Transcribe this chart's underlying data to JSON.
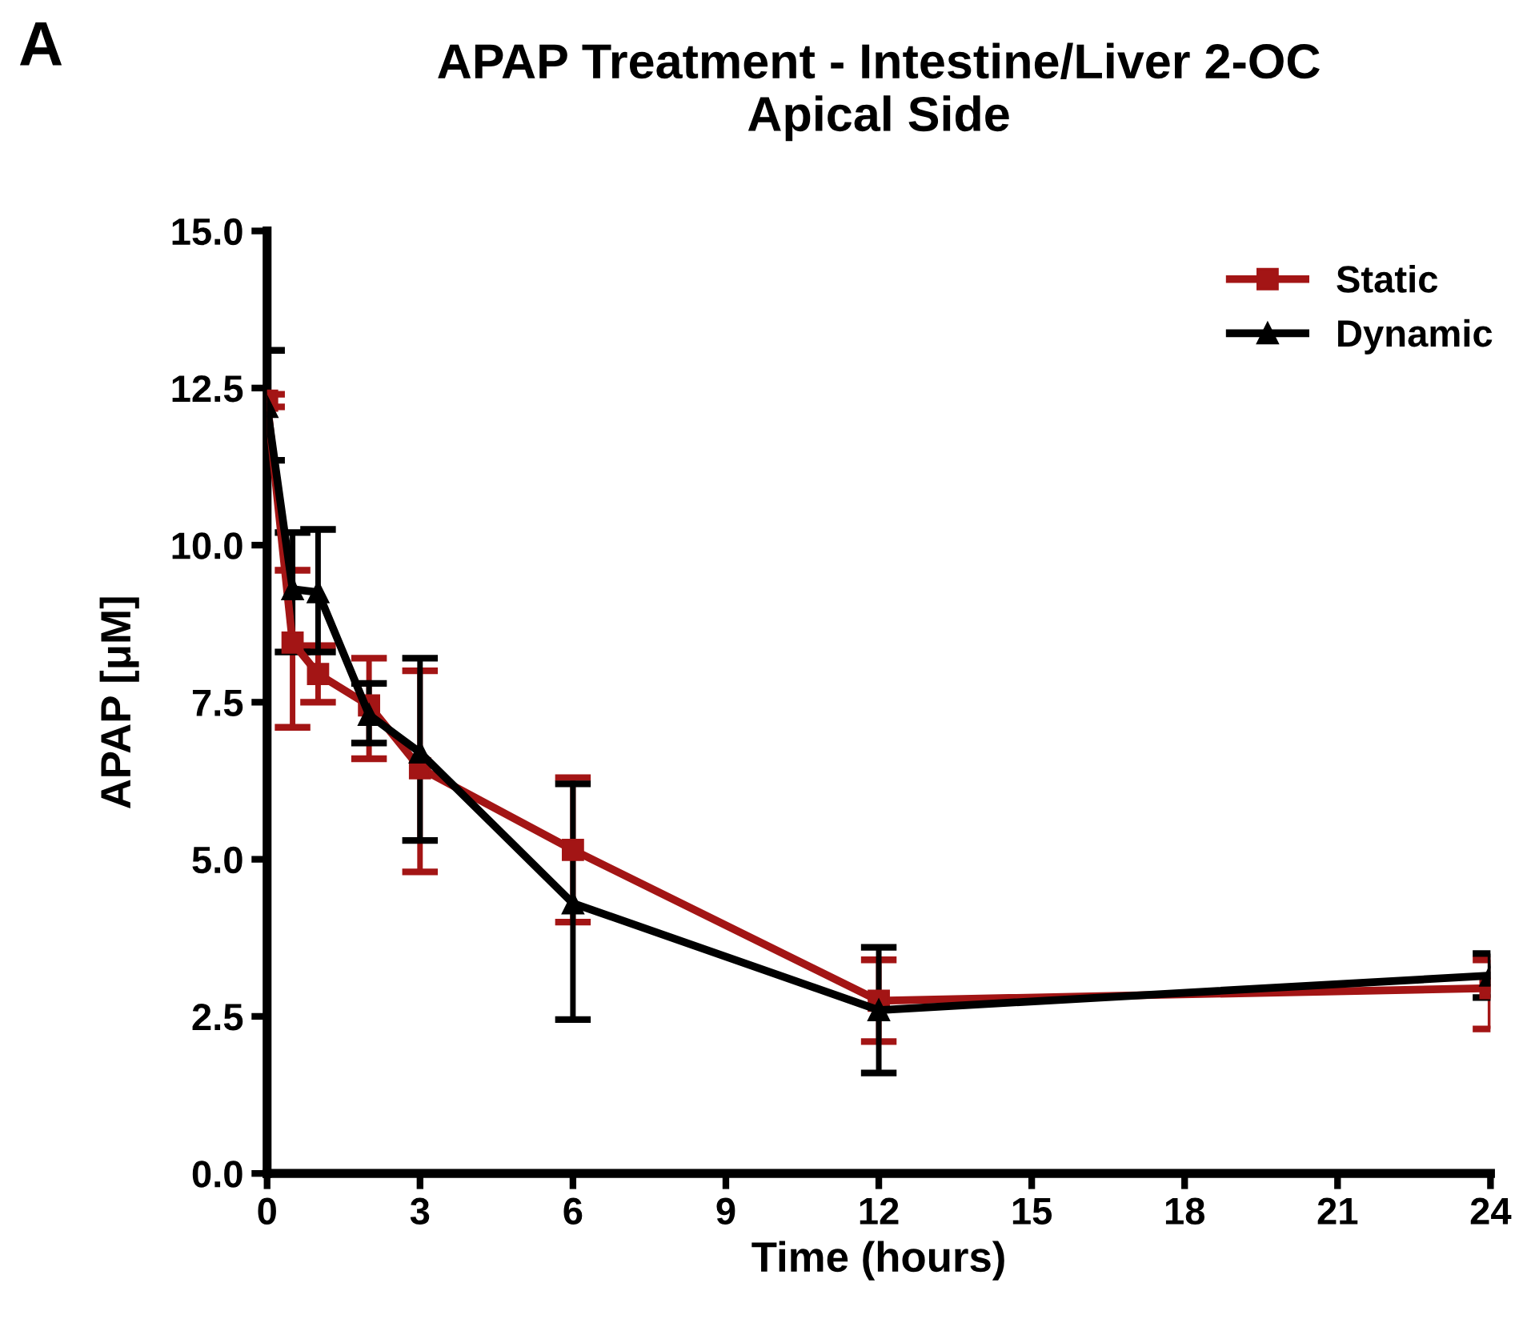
{
  "chart_data": {
    "type": "line",
    "title": "APAP Treatment - Intestine/Liver 2-OC\nApical Side",
    "xlabel": "Time (hours)",
    "ylabel": "APAP [μM]",
    "annotations": [
      "A"
    ],
    "x": [
      0,
      0.5,
      1,
      2,
      3,
      6,
      12,
      24
    ],
    "series": [
      {
        "name": "Static",
        "color": "#a31515",
        "marker": "square",
        "values": [
          12.3,
          8.45,
          7.95,
          7.45,
          6.45,
          5.15,
          2.75,
          2.95
        ],
        "errors": [
          0.1,
          [
            7.1,
            9.6
          ],
          [
            7.5,
            8.4
          ],
          [
            6.6,
            8.2
          ],
          [
            4.8,
            8.0
          ],
          [
            4.0,
            6.3
          ],
          [
            2.1,
            3.4
          ],
          [
            2.3,
            3.4
          ]
        ]
      },
      {
        "name": "Dynamic",
        "color": "#000000",
        "marker": "triangle",
        "values": [
          12.2,
          9.3,
          9.25,
          7.3,
          6.7,
          4.3,
          2.6,
          3.15
        ],
        "errors": [
          [
            11.35,
            13.1
          ],
          [
            8.3,
            10.2
          ],
          [
            8.3,
            10.25
          ],
          [
            6.85,
            7.8
          ],
          [
            5.3,
            8.2
          ],
          [
            2.45,
            6.2
          ],
          [
            1.6,
            3.6
          ],
          [
            2.8,
            3.5
          ]
        ]
      }
    ],
    "xlim": [
      0,
      24
    ],
    "xticks": [
      0,
      3,
      6,
      9,
      12,
      15,
      18,
      21,
      24
    ],
    "ylim": [
      0,
      15
    ],
    "yticks": [
      {
        "value": 0,
        "label": "0.0"
      },
      {
        "value": 2.5,
        "label": "2.5"
      },
      {
        "value": 5,
        "label": "5.0"
      },
      {
        "value": 7.5,
        "label": "7.5"
      },
      {
        "value": 10,
        "label": "10.0"
      },
      {
        "value": 12.5,
        "label": "12.5"
      },
      {
        "value": 15,
        "label": "15.0"
      }
    ],
    "grid": false,
    "legend": "top right",
    "line_style": "solid"
  }
}
